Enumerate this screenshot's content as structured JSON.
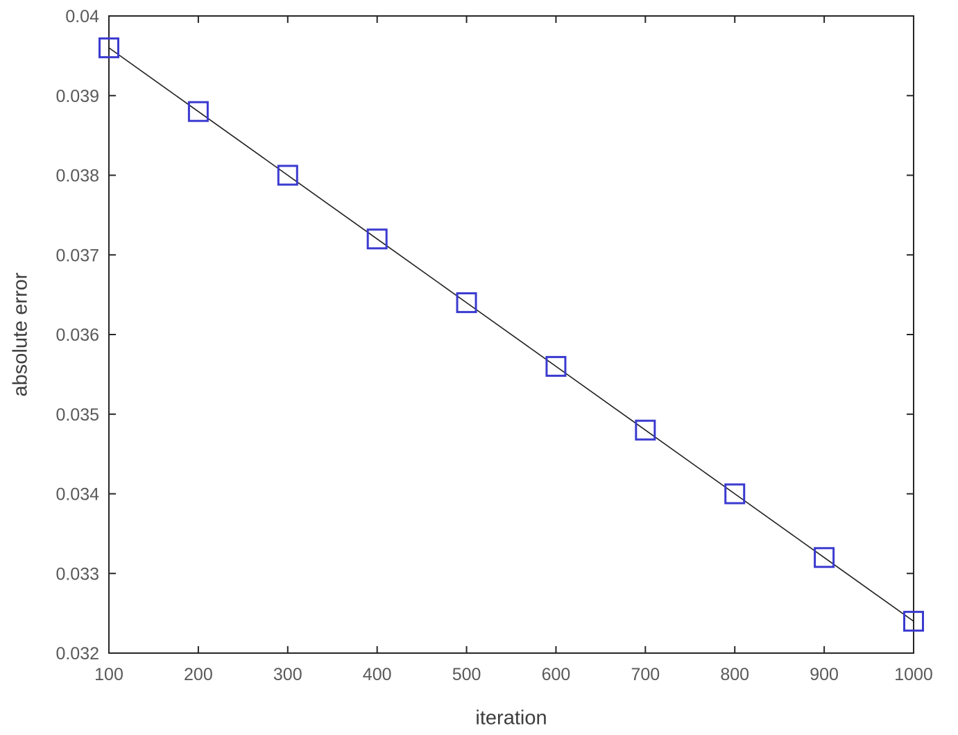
{
  "figure": {
    "background": "#ffffff"
  },
  "chart_data": {
    "type": "line",
    "title": "",
    "xlabel": "iteration",
    "ylabel": "absolute error",
    "x": [
      100,
      200,
      300,
      400,
      500,
      600,
      700,
      800,
      900,
      1000
    ],
    "series": [
      {
        "name": "absolute error",
        "values": [
          0.0396,
          0.0388,
          0.038,
          0.0372,
          0.0364,
          0.0356,
          0.0348,
          0.034,
          0.0332,
          0.0324
        ]
      }
    ],
    "xlim": [
      100,
      1000
    ],
    "ylim": [
      0.032,
      0.04
    ],
    "x_ticks": [
      100,
      200,
      300,
      400,
      500,
      600,
      700,
      800,
      900,
      1000
    ],
    "x_tick_labels": [
      "100",
      "200",
      "300",
      "400",
      "500",
      "600",
      "700",
      "800",
      "900",
      "1000"
    ],
    "y_ticks": [
      0.032,
      0.033,
      0.034,
      0.035,
      0.036,
      0.037,
      0.038,
      0.039,
      0.04
    ],
    "y_tick_labels": [
      "0.032",
      "0.033",
      "0.034",
      "0.035",
      "0.036",
      "0.037",
      "0.038",
      "0.039",
      "0.04"
    ],
    "grid": false,
    "legend": "none",
    "marker": {
      "shape": "square",
      "color": "#3a3ad0",
      "size": 27,
      "fill": "none",
      "stroke_width": 3
    },
    "line": {
      "color": "#1f1f1f",
      "width": 1.6,
      "style": "solid"
    },
    "axis": {
      "box": true,
      "tick_direction": "in",
      "tick_length": 10,
      "color": "#262626",
      "line_width": 2,
      "tick_label_color": "#595959",
      "label_color": "#3d3d3d"
    }
  }
}
